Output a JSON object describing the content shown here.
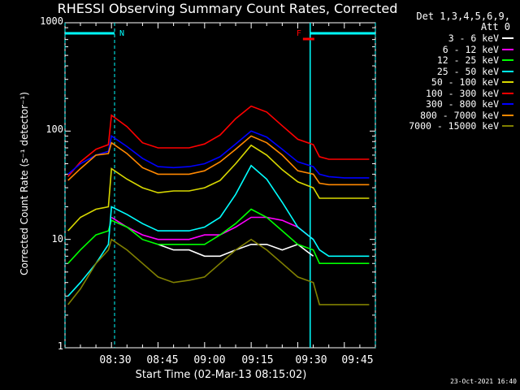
{
  "chart_data": {
    "type": "line",
    "title": "RHESSI Observing Summary Count Rates, Corrected",
    "detectors": "Det 1,3,4,5,6,9,",
    "attenuator": "Att 0",
    "xlabel": "Start Time (02-Mar-13 08:15:02)",
    "ylabel": "Corrected Count Rate (s⁻¹ detector⁻¹)",
    "y_scale": "log",
    "ylim": [
      1,
      1000
    ],
    "x_range": [
      "08:15:02",
      "09:55:00"
    ],
    "y_tick_labels": [
      "1",
      "10",
      "100",
      "1000"
    ],
    "x_tick_labels": [
      "08:30",
      "08:45",
      "09:00",
      "09:15",
      "09:30",
      "09:45"
    ],
    "legend_position": "top-right, outside plot",
    "timestamp": "23-Oct-2021 16:40",
    "night_intervals": [
      [
        "08:15:02",
        "08:31"
      ],
      [
        "09:34",
        "09:55"
      ]
    ],
    "saa_intervals": [
      [
        "08:15:02",
        "08:31"
      ],
      [
        "09:34",
        "09:55"
      ]
    ],
    "annotations": [
      {
        "text": "N",
        "time": "08:31",
        "color": "#00ffff"
      },
      {
        "text": "F",
        "time": "09:28",
        "color": "#ff0000"
      }
    ],
    "x_times": [
      "08:16",
      "08:20",
      "08:25",
      "08:29",
      "08:30",
      "08:35",
      "08:40",
      "08:45",
      "08:50",
      "08:55",
      "09:00",
      "09:05",
      "09:10",
      "09:15",
      "09:20",
      "09:25",
      "09:30",
      "09:35",
      "09:37",
      "09:40",
      "09:45",
      "09:50",
      "09:53"
    ],
    "series": [
      {
        "name": "3 - 6 keV",
        "color": "#ffffff",
        "values": [
          null,
          null,
          null,
          null,
          null,
          null,
          null,
          9,
          8,
          8,
          7,
          7,
          8,
          9,
          9,
          8,
          9,
          7,
          null,
          null,
          null,
          null,
          null
        ]
      },
      {
        "name": "6 - 12 keV",
        "color": "#ff00ff",
        "values": [
          null,
          null,
          null,
          null,
          16,
          13,
          11,
          10,
          10,
          10,
          11,
          11,
          13,
          16,
          16,
          15,
          13,
          10,
          null,
          null,
          null,
          null,
          null
        ]
      },
      {
        "name": "12 - 25 keV",
        "color": "#00ff00",
        "values": [
          6,
          8,
          11,
          12,
          15,
          13,
          10,
          9,
          9,
          9,
          9,
          11,
          14,
          19,
          16,
          12,
          9,
          8,
          6,
          6,
          6,
          6,
          6
        ]
      },
      {
        "name": "25 - 50 keV",
        "color": "#00ffff",
        "values": [
          3,
          4,
          6,
          9,
          20,
          17,
          14,
          12,
          12,
          12,
          13,
          16,
          26,
          48,
          36,
          22,
          13,
          10,
          8,
          7,
          7,
          7,
          7
        ]
      },
      {
        "name": "50 - 100 keV",
        "color": "#d8d800",
        "values": [
          12,
          16,
          19,
          20,
          45,
          36,
          30,
          27,
          28,
          28,
          30,
          35,
          50,
          74,
          60,
          44,
          34,
          30,
          24,
          24,
          24,
          24,
          24
        ]
      },
      {
        "name": "100 - 300 keV",
        "color": "#ff0000",
        "values": [
          38,
          52,
          68,
          75,
          140,
          110,
          78,
          70,
          70,
          70,
          76,
          92,
          130,
          170,
          150,
          112,
          84,
          75,
          58,
          55,
          55,
          55,
          55
        ]
      },
      {
        "name": "300 - 800 keV",
        "color": "#0000ff",
        "values": [
          40,
          50,
          60,
          65,
          90,
          72,
          56,
          47,
          46,
          47,
          50,
          58,
          76,
          100,
          88,
          68,
          52,
          47,
          40,
          38,
          37,
          37,
          37
        ]
      },
      {
        "name": "800 - 7000 keV",
        "color": "#ff8800",
        "values": [
          35,
          45,
          60,
          62,
          78,
          62,
          46,
          40,
          40,
          40,
          43,
          52,
          68,
          90,
          78,
          60,
          43,
          40,
          33,
          32,
          32,
          32,
          32
        ]
      },
      {
        "name": "7000 - 15000 keV",
        "color": "#808000",
        "values": [
          2.5,
          3.5,
          6,
          8,
          10,
          8,
          6,
          4.5,
          4,
          4.2,
          4.5,
          6,
          8,
          10,
          8,
          6,
          4.5,
          4,
          2.5,
          2.5,
          2.5,
          2.5,
          2.5
        ]
      }
    ]
  }
}
